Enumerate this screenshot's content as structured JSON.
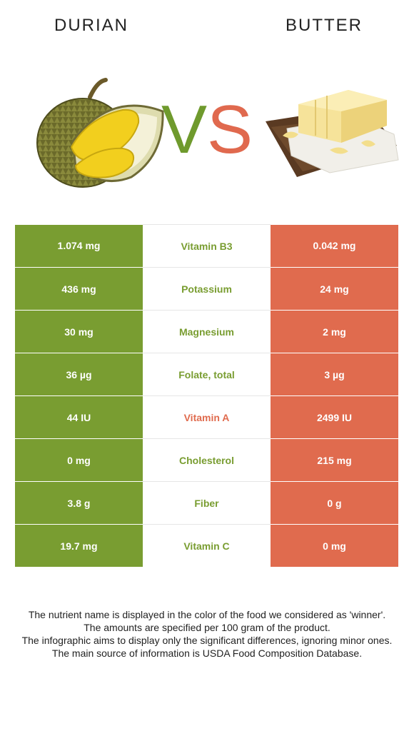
{
  "header": {
    "left_title": "DURIAN",
    "right_title": "BUTTER",
    "vs_v": "V",
    "vs_s": "S"
  },
  "colors": {
    "left_food": "#799d31",
    "right_food": "#e06b4e"
  },
  "rows": [
    {
      "left": "1.074 mg",
      "nutrient": "Vitamin B3",
      "right": "0.042 mg",
      "winner": "left"
    },
    {
      "left": "436 mg",
      "nutrient": "Potassium",
      "right": "24 mg",
      "winner": "left"
    },
    {
      "left": "30 mg",
      "nutrient": "Magnesium",
      "right": "2 mg",
      "winner": "left"
    },
    {
      "left": "36 µg",
      "nutrient": "Folate, total",
      "right": "3 µg",
      "winner": "left"
    },
    {
      "left": "44 IU",
      "nutrient": "Vitamin A",
      "right": "2499 IU",
      "winner": "right"
    },
    {
      "left": "0 mg",
      "nutrient": "Cholesterol",
      "right": "215 mg",
      "winner": "left"
    },
    {
      "left": "3.8 g",
      "nutrient": "Fiber",
      "right": "0 g",
      "winner": "left"
    },
    {
      "left": "19.7 mg",
      "nutrient": "Vitamin C",
      "right": "0 mg",
      "winner": "left"
    }
  ],
  "footer": {
    "line1": "The nutrient name is displayed in the color of the food we considered as 'winner'.",
    "line2": "The amounts are specified per 100 gram of the product.",
    "line3": "The infographic aims to display only the significant differences, ignoring minor ones.",
    "line4": "The main source of information is USDA Food Composition Database."
  }
}
